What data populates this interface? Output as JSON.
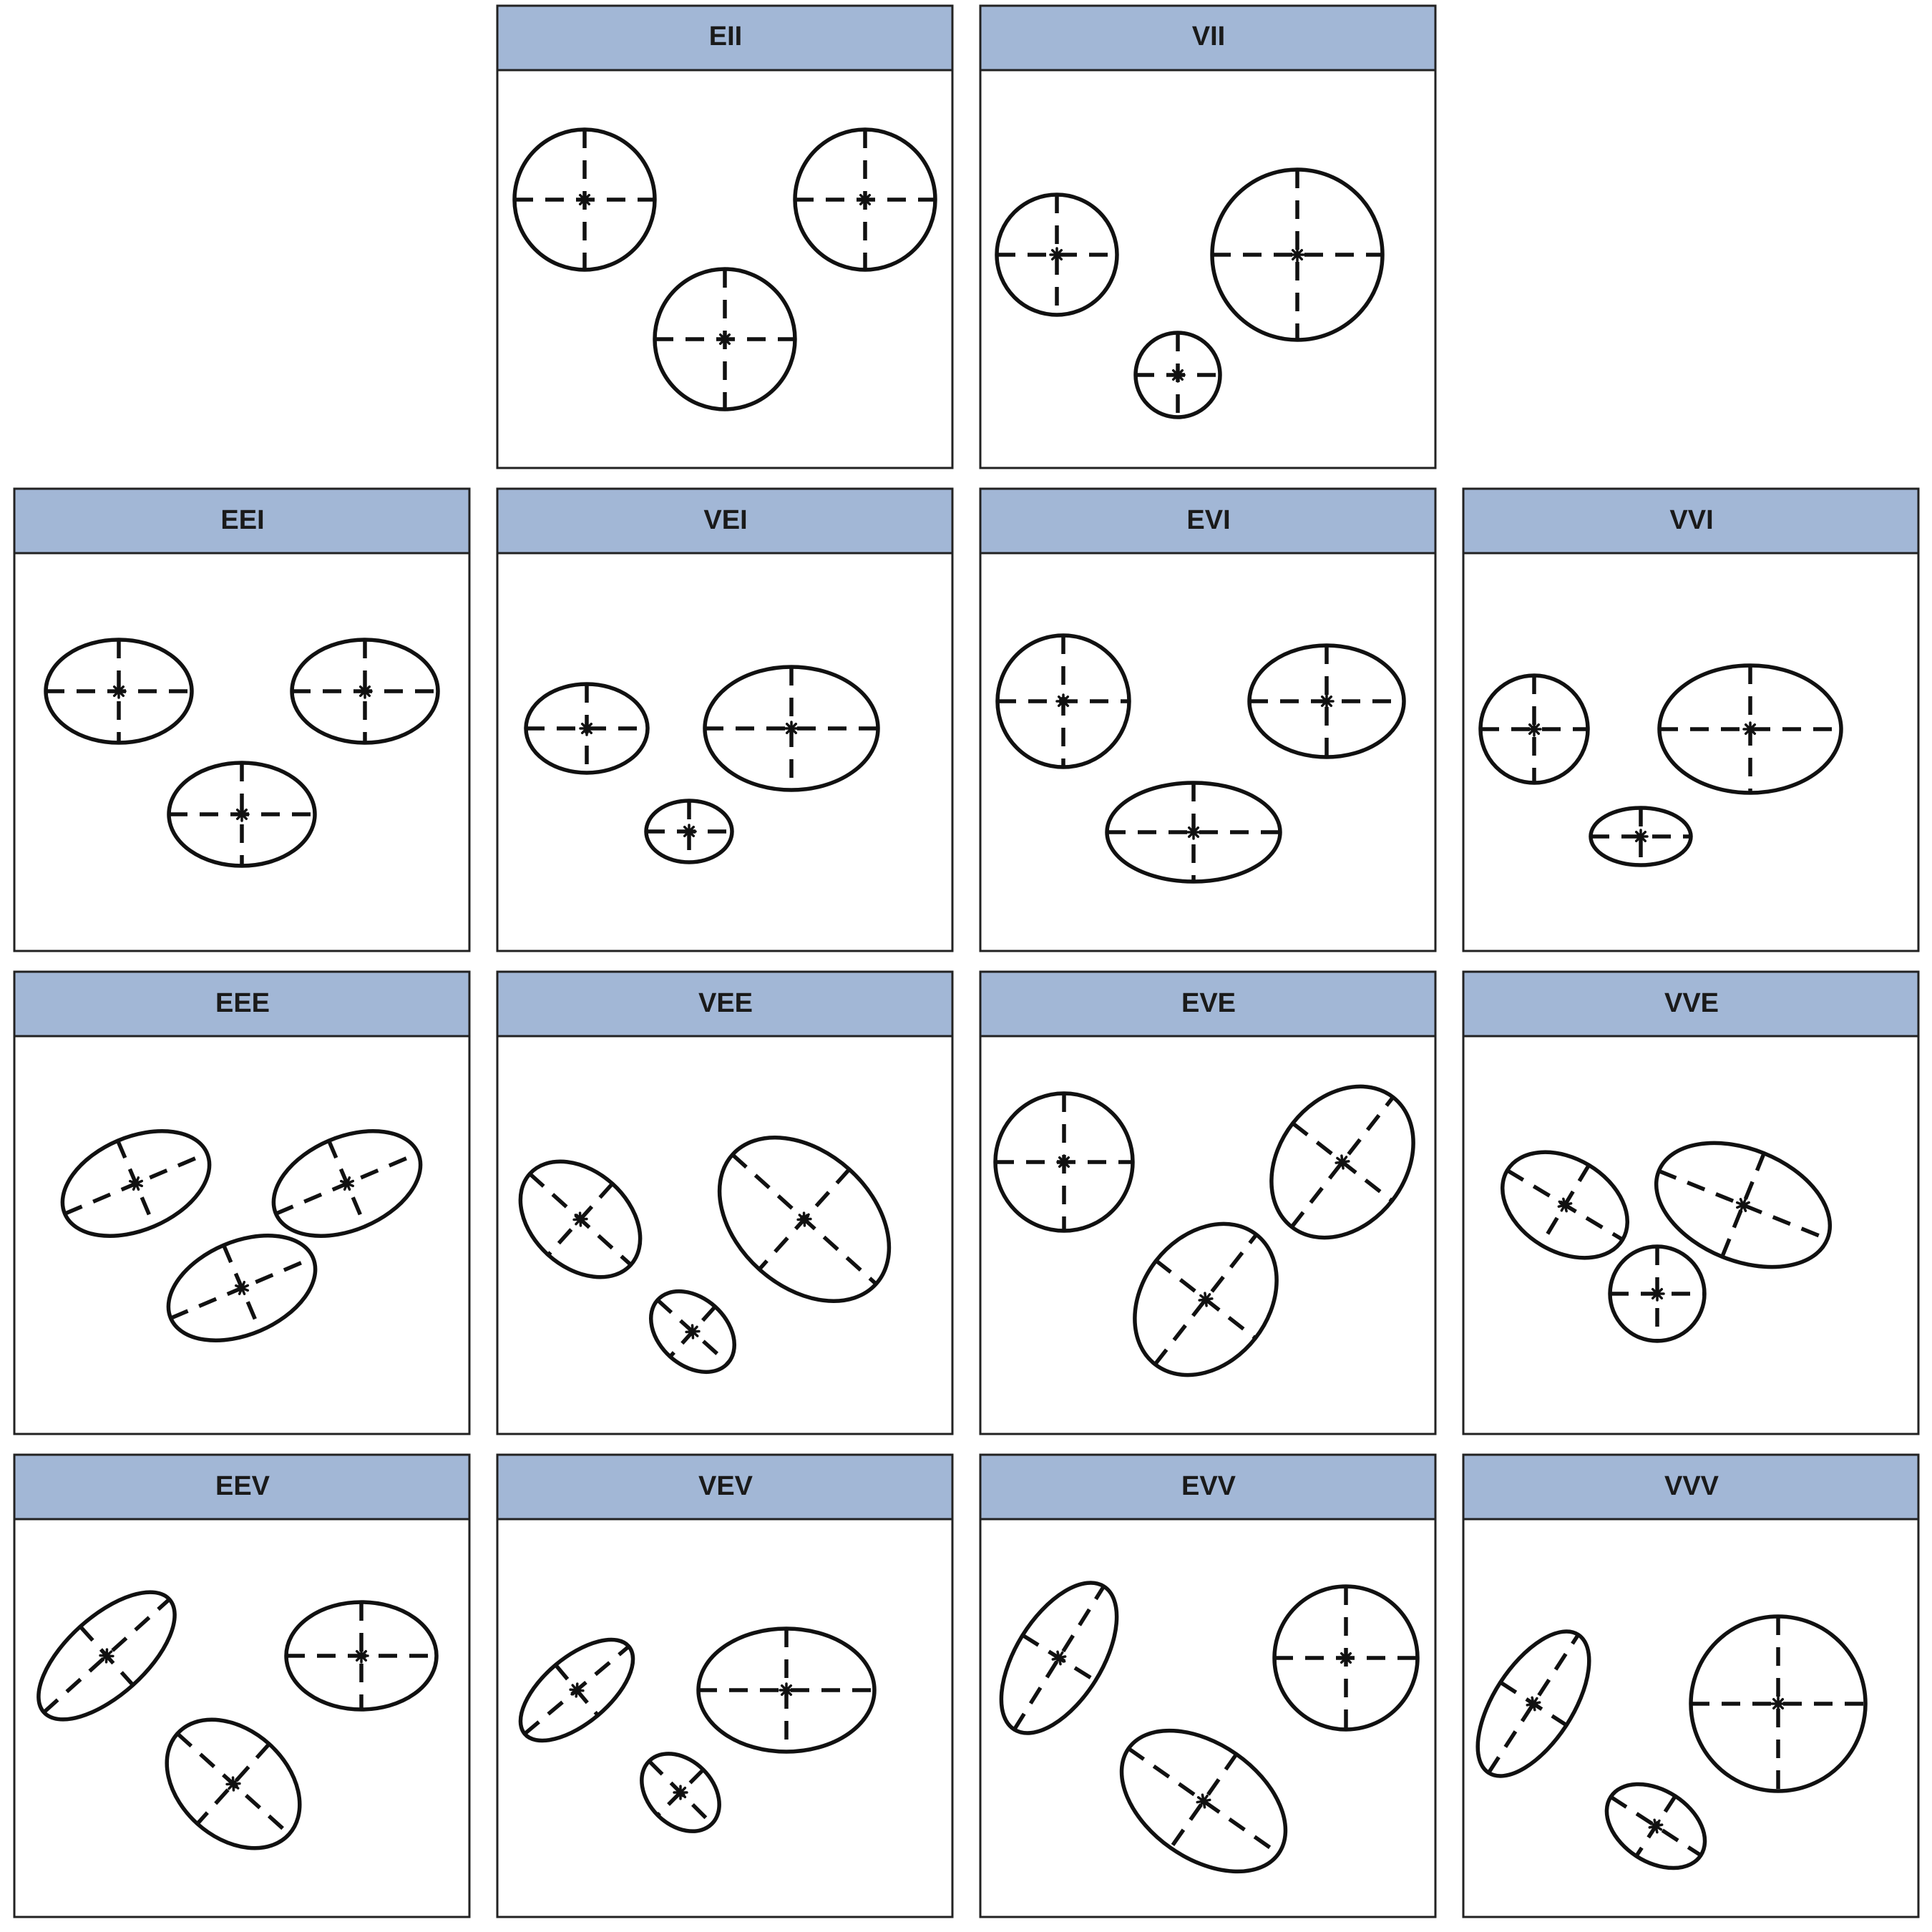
{
  "strip_color": "#a2b7d6",
  "panels": [
    {
      "label": "EII",
      "ellipses": [
        {
          "shape": "circle",
          "size": "equal"
        },
        {
          "shape": "circle",
          "size": "equal"
        },
        {
          "shape": "circle",
          "size": "equal"
        }
      ]
    },
    {
      "label": "VII",
      "ellipses": [
        {
          "shape": "circle",
          "size": "medium"
        },
        {
          "shape": "circle",
          "size": "large"
        },
        {
          "shape": "circle",
          "size": "small"
        }
      ]
    },
    {
      "label": "EEI",
      "ellipses": [
        {
          "shape": "axis-aligned ellipse",
          "size": "equal"
        },
        {
          "shape": "axis-aligned ellipse",
          "size": "equal"
        },
        {
          "shape": "axis-aligned ellipse",
          "size": "equal"
        }
      ]
    },
    {
      "label": "VEI",
      "ellipses": [
        {
          "shape": "axis-aligned ellipse",
          "size": "medium"
        },
        {
          "shape": "axis-aligned ellipse",
          "size": "large"
        },
        {
          "shape": "axis-aligned ellipse",
          "size": "small"
        }
      ]
    },
    {
      "label": "EVI",
      "ellipses": [
        {
          "shape": "axis-aligned ellipse",
          "size": "equal"
        },
        {
          "shape": "axis-aligned ellipse",
          "size": "equal"
        },
        {
          "shape": "axis-aligned ellipse",
          "size": "equal"
        }
      ]
    },
    {
      "label": "VVI",
      "ellipses": [
        {
          "shape": "axis-aligned ellipse",
          "size": "medium"
        },
        {
          "shape": "axis-aligned ellipse",
          "size": "large"
        },
        {
          "shape": "axis-aligned ellipse",
          "size": "small"
        }
      ]
    },
    {
      "label": "EEE",
      "ellipses": [
        {
          "shape": "rotated ellipse",
          "size": "equal"
        },
        {
          "shape": "rotated ellipse",
          "size": "equal"
        },
        {
          "shape": "rotated ellipse",
          "size": "equal"
        }
      ]
    },
    {
      "label": "VEE",
      "ellipses": [
        {
          "shape": "rotated ellipse",
          "size": "medium"
        },
        {
          "shape": "rotated ellipse",
          "size": "large"
        },
        {
          "shape": "rotated ellipse",
          "size": "small"
        }
      ]
    },
    {
      "label": "EVE",
      "ellipses": [
        {
          "shape": "rotated ellipse",
          "size": "equal"
        },
        {
          "shape": "rotated ellipse",
          "size": "equal"
        },
        {
          "shape": "rotated ellipse",
          "size": "equal"
        }
      ]
    },
    {
      "label": "VVE",
      "ellipses": [
        {
          "shape": "rotated ellipse",
          "size": "medium"
        },
        {
          "shape": "rotated ellipse",
          "size": "large"
        },
        {
          "shape": "rotated ellipse",
          "size": "small"
        }
      ]
    },
    {
      "label": "EEV",
      "ellipses": [
        {
          "shape": "rotated ellipse",
          "size": "equal"
        },
        {
          "shape": "axis-aligned ellipse",
          "size": "equal"
        },
        {
          "shape": "rotated ellipse",
          "size": "equal"
        }
      ]
    },
    {
      "label": "VEV",
      "ellipses": [
        {
          "shape": "rotated ellipse",
          "size": "medium"
        },
        {
          "shape": "axis-aligned ellipse",
          "size": "large"
        },
        {
          "shape": "rotated ellipse",
          "size": "small"
        }
      ]
    },
    {
      "label": "EVV",
      "ellipses": [
        {
          "shape": "rotated ellipse",
          "size": "equal"
        },
        {
          "shape": "circle",
          "size": "equal"
        },
        {
          "shape": "rotated ellipse",
          "size": "equal"
        }
      ]
    },
    {
      "label": "VVV",
      "ellipses": [
        {
          "shape": "rotated ellipse",
          "size": "medium"
        },
        {
          "shape": "circle",
          "size": "large"
        },
        {
          "shape": "rotated ellipse",
          "size": "small"
        }
      ]
    }
  ]
}
